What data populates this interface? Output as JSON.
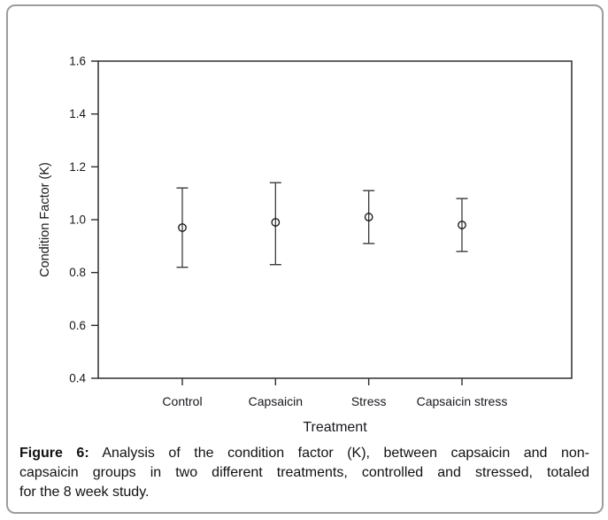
{
  "frame": {
    "border_color": "#9c9c9c",
    "background": "#ffffff"
  },
  "chart_data": {
    "type": "scatter",
    "subtype": "mean-with-error-bars",
    "title": "",
    "xlabel": "Treatment",
    "ylabel": "Condition Factor (K)",
    "categories": [
      "Control",
      "Capsaicin",
      "Stress",
      "Capsaicin stress"
    ],
    "series": [
      {
        "name": "Condition factor (K)",
        "marker": "open-circle",
        "points": [
          {
            "category": "Control",
            "mean": 0.97,
            "upper": 1.12,
            "lower": 0.82
          },
          {
            "category": "Capsaicin",
            "mean": 0.99,
            "upper": 1.14,
            "lower": 0.83
          },
          {
            "category": "Stress",
            "mean": 1.01,
            "upper": 1.11,
            "lower": 0.91
          },
          {
            "category": "Capsaicin stress",
            "mean": 0.98,
            "upper": 1.08,
            "lower": 0.88
          }
        ]
      }
    ],
    "ylim": [
      0.4,
      1.6
    ],
    "yticks": [
      1.6,
      1.4,
      1.2,
      1.0,
      0.8,
      0.6,
      0.4
    ],
    "ytick_labels": [
      "1.6",
      "1.4",
      "1.2",
      "1.0",
      "0.8",
      "0.6",
      "0.4"
    ],
    "grid": false,
    "legend_position": "none",
    "colors": {
      "axis": "#2e2e2e",
      "error_bar": "#3c3c3c",
      "marker_stroke": "#111111",
      "tick_text": "#17171d"
    }
  },
  "caption": {
    "label": "Figure 6:",
    "line1": "Analysis of the condition factor (K), between capsaicin and non-",
    "line2": "capsaicin groups in two different treatments, controlled and stressed, totaled",
    "line3": "for the 8 week study.",
    "full_text": "Figure 6: Analysis of the condition factor (K), between capsaicin and non-capsaicin groups in two different treatments, controlled and stressed, totaled for the 8 week study."
  }
}
